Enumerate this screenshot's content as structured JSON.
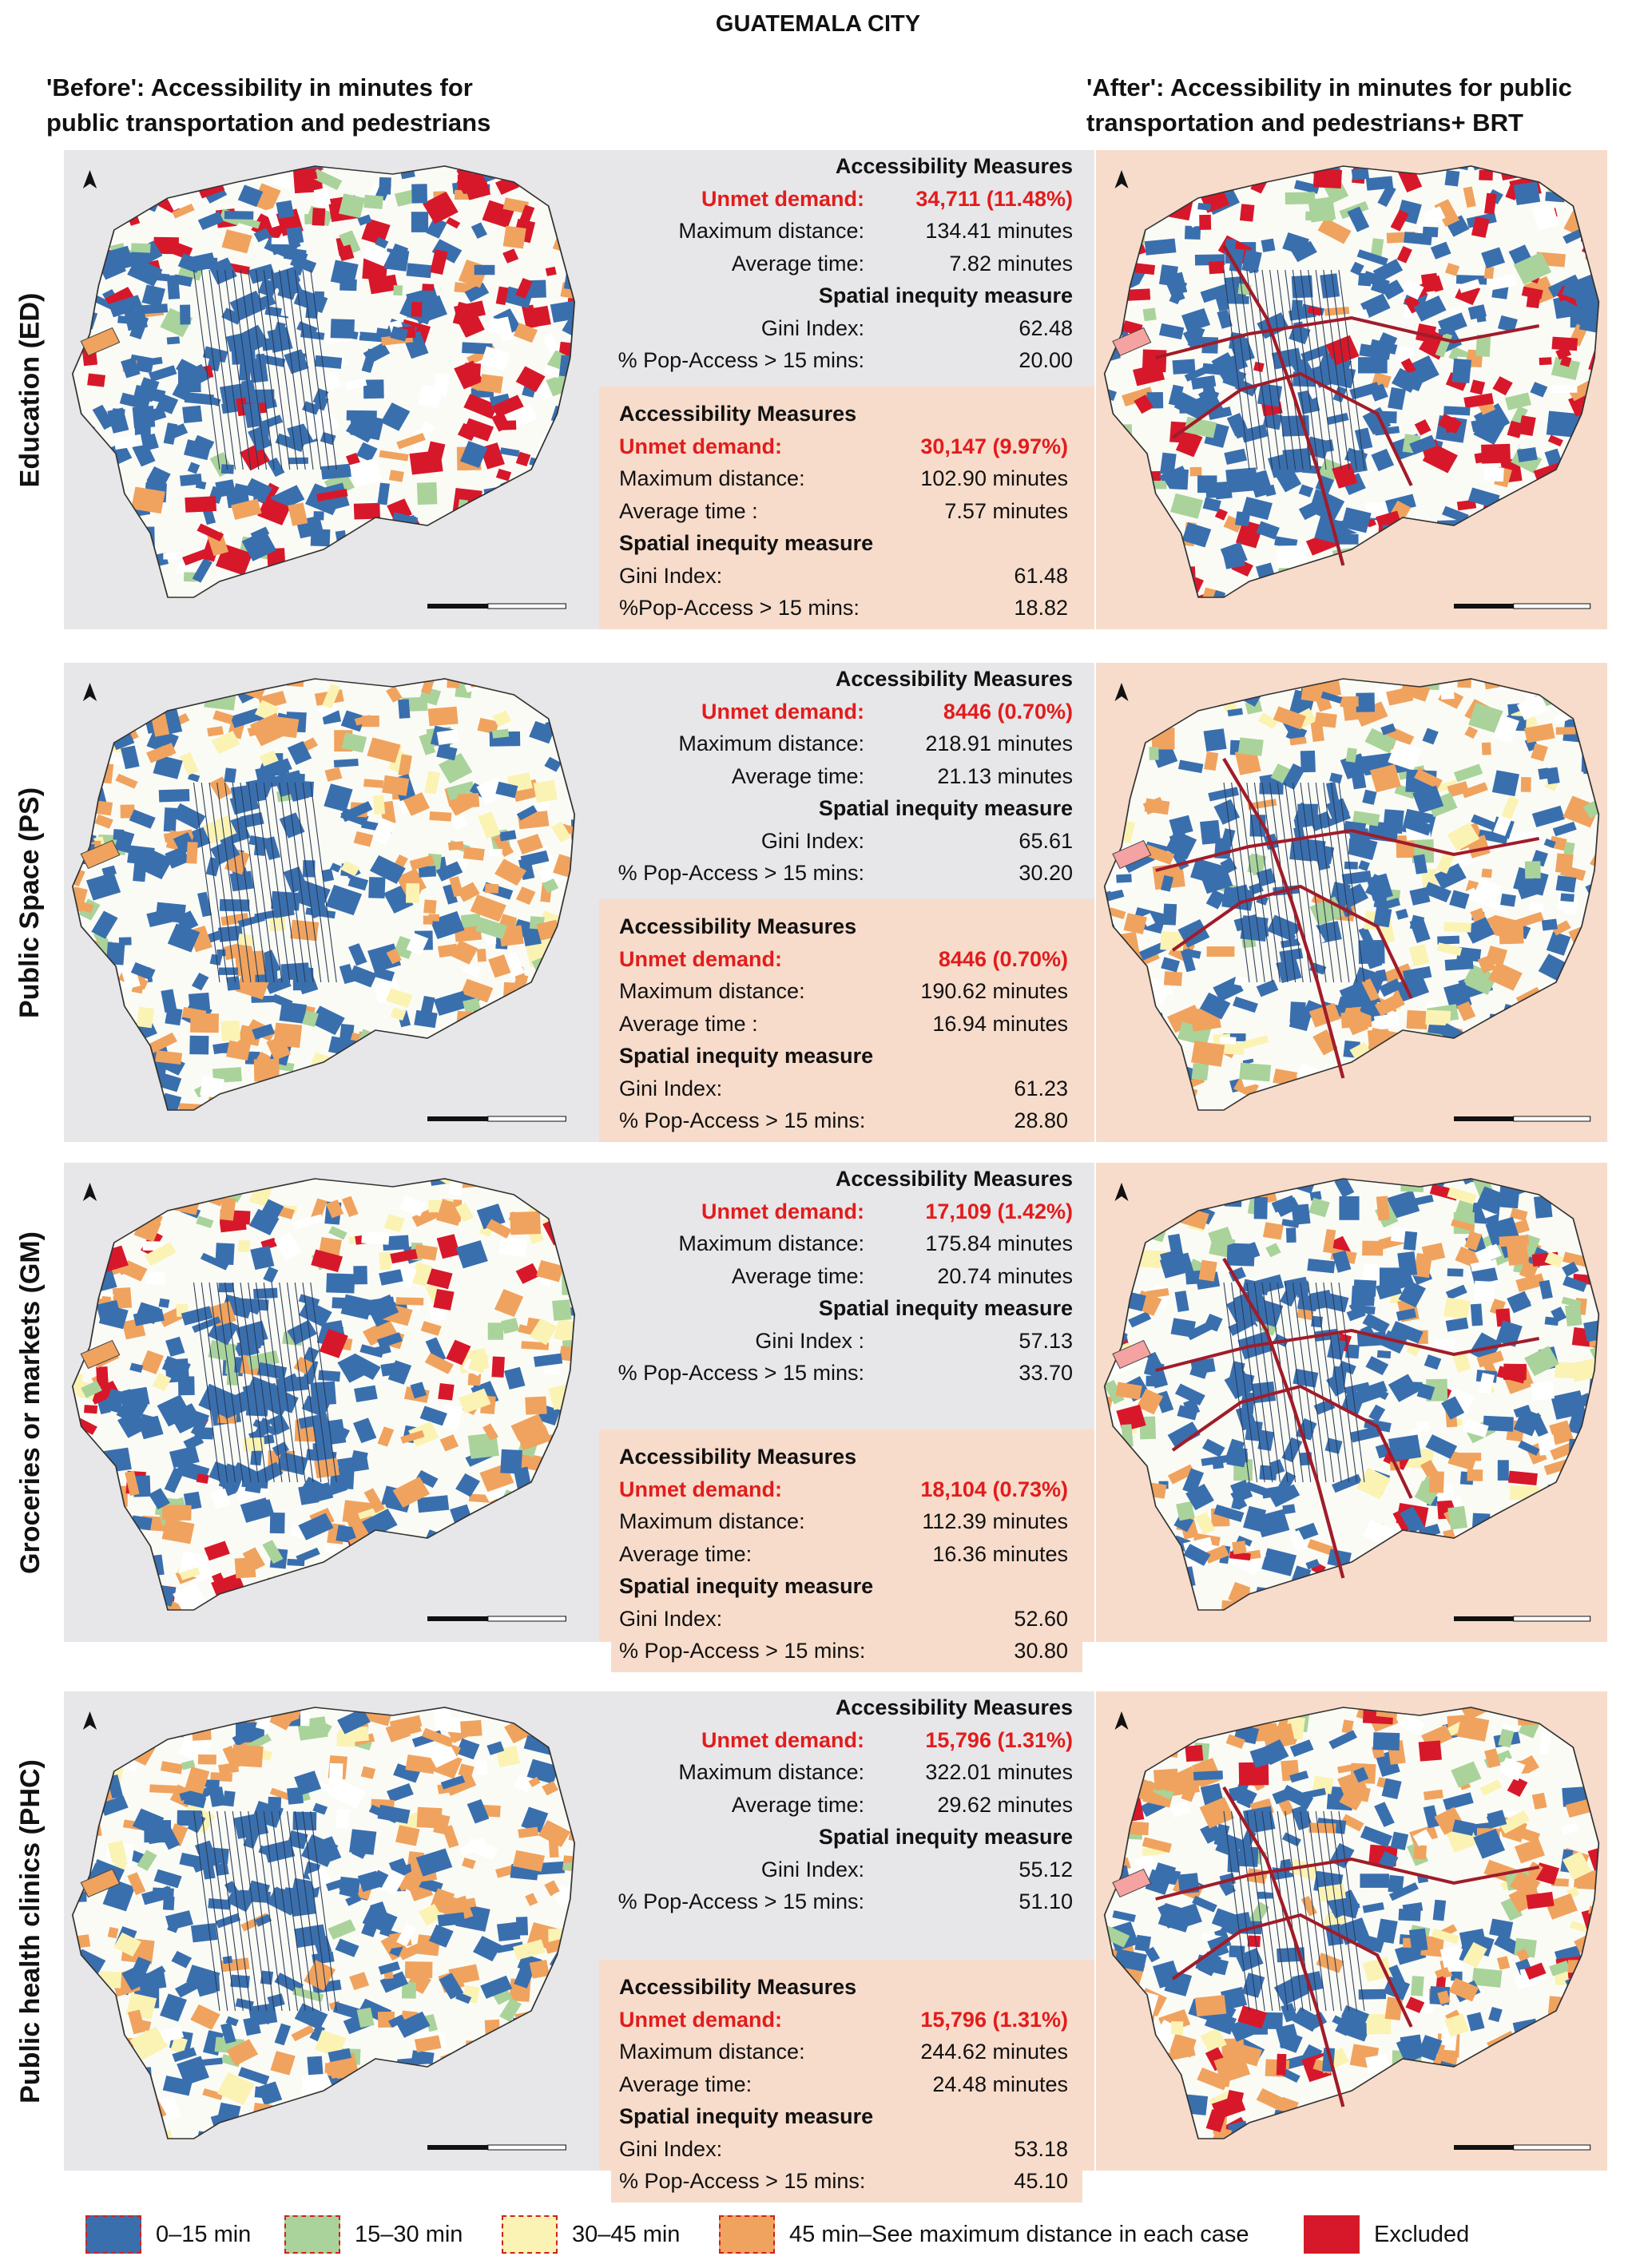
{
  "page": {
    "title": "GUATEMALA CITY",
    "before_header": [
      "'Before': Accessibility in minutes for",
      "public transportation and pedestrians"
    ],
    "after_header": [
      "'After': Accessibility in minutes for public",
      "transportation and pedestrians+ BRT"
    ]
  },
  "colors": {
    "before_bg": "#e7e7e9",
    "after_bg": "#f7dccb",
    "highlight_red": "#e21c1c",
    "brt_line": "#a01c2a"
  },
  "legend": [
    {
      "label": "0–15 min",
      "color": "#3a6fae"
    },
    {
      "label": "15–30 min",
      "color": "#a9d39a"
    },
    {
      "label": "30–45 min",
      "color": "#fbf3b4"
    },
    {
      "label": "45 min–See maximum distance in each case",
      "color": "#f0a35e"
    },
    {
      "label": "Excluded",
      "color": "#d7182a"
    }
  ],
  "rows": [
    {
      "label": "Education (ED)",
      "before": {
        "heading": "Accessibility Measures",
        "unmet_label": "Unmet demand:",
        "unmet_value": "34,711 (11.48%)",
        "max_label": "Maximum distance:",
        "max_value": "134.41 minutes",
        "avg_label": "Average time:",
        "avg_value": "7.82 minutes",
        "ineq_heading": "Spatial inequity measure",
        "gini_label": "Gini Index:",
        "gini_value": "62.48",
        "pop_label": "% Pop-Access > 15 mins:",
        "pop_value": "20.00"
      },
      "after": {
        "heading": "Accessibility Measures",
        "unmet_label": "Unmet demand:",
        "unmet_value": "30,147 (9.97%)",
        "max_label": "Maximum distance:",
        "max_value": "102.90 minutes",
        "avg_label": "Average time :",
        "avg_value": "7.57 minutes",
        "ineq_heading": "Spatial inequity measure",
        "gini_label": "Gini Index:",
        "gini_value": "61.48",
        "pop_label": "%Pop-Access > 15 mins:",
        "pop_value": "18.82"
      }
    },
    {
      "label": "Public Space (PS)",
      "before": {
        "heading": "Accessibility Measures",
        "unmet_label": "Unmet demand:",
        "unmet_value": "8446 (0.70%)",
        "max_label": "Maximum distance:",
        "max_value": "218.91 minutes",
        "avg_label": "Average time:",
        "avg_value": "21.13 minutes",
        "ineq_heading": "Spatial inequity measure",
        "gini_label": "Gini Index:",
        "gini_value": "65.61",
        "pop_label": "% Pop-Access > 15 mins:",
        "pop_value": "30.20"
      },
      "after": {
        "heading": "Accessibility Measures",
        "unmet_label": "Unmet demand:",
        "unmet_value": "8446 (0.70%)",
        "max_label": "Maximum distance:",
        "max_value": "190.62 minutes",
        "avg_label": "Average time :",
        "avg_value": "16.94 minutes",
        "ineq_heading": "Spatial inequity measure",
        "gini_label": "Gini Index:",
        "gini_value": "61.23",
        "pop_label": "% Pop-Access > 15 mins:",
        "pop_value": "28.80"
      }
    },
    {
      "label": "Groceries or markets (GM)",
      "before": {
        "heading": "Accessibility Measures",
        "unmet_label": "Unmet demand:",
        "unmet_value": "17,109 (1.42%)",
        "max_label": "Maximum distance:",
        "max_value": "175.84 minutes",
        "avg_label": "Average time:",
        "avg_value": "20.74 minutes",
        "ineq_heading": "Spatial inequity measure",
        "gini_label": "Gini Index :",
        "gini_value": "57.13",
        "pop_label": "% Pop-Access > 15 mins:",
        "pop_value": "33.70"
      },
      "after": {
        "heading": "Accessibility Measures",
        "unmet_label": "Unmet demand:",
        "unmet_value": "18,104 (0.73%)",
        "max_label": "Maximum distance:",
        "max_value": "112.39 minutes",
        "avg_label": "Average time:",
        "avg_value": "16.36 minutes",
        "ineq_heading": "Spatial inequity measure",
        "gini_label": "Gini Index:",
        "gini_value": "52.60",
        "pop_label": "% Pop-Access > 15 mins:",
        "pop_value": "30.80"
      }
    },
    {
      "label": "Public health clinics (PHC)",
      "before": {
        "heading": "Accessibility Measures",
        "unmet_label": "Unmet demand:",
        "unmet_value": "15,796 (1.31%)",
        "max_label": "Maximum distance:",
        "max_value": "322.01 minutes",
        "avg_label": "Average time:",
        "avg_value": "29.62 minutes",
        "ineq_heading": "Spatial inequity measure",
        "gini_label": "Gini Index:",
        "gini_value": "55.12",
        "pop_label": "% Pop-Access > 15 mins:",
        "pop_value": "51.10"
      },
      "after": {
        "heading": "Accessibility Measures",
        "unmet_label": "Unmet demand:",
        "unmet_value": "15,796 (1.31%)",
        "max_label": "Maximum distance:",
        "max_value": "244.62 minutes",
        "avg_label": "Average time:",
        "avg_value": "24.48 minutes",
        "ineq_heading": "Spatial inequity measure",
        "gini_label": "Gini Index:",
        "gini_value": "53.18",
        "pop_label": "% Pop-Access > 15 mins:",
        "pop_value": "45.10"
      }
    }
  ]
}
